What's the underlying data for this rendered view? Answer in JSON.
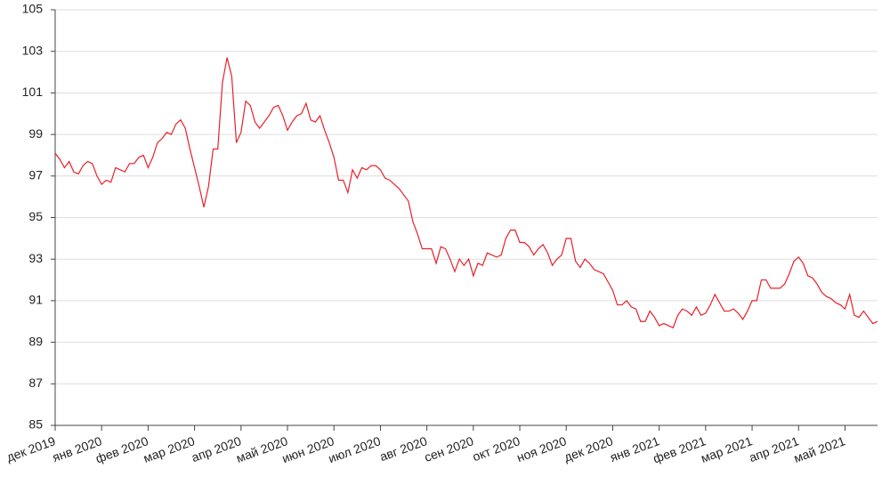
{
  "chart_data": {
    "type": "line",
    "x": [
      0,
      0.1,
      0.2,
      0.3,
      0.4,
      0.5,
      0.6,
      0.7,
      0.8,
      0.9,
      1,
      1.1,
      1.2,
      1.3,
      1.4,
      1.5,
      1.6,
      1.7,
      1.8,
      1.9,
      2,
      2.1,
      2.2,
      2.3,
      2.4,
      2.5,
      2.6,
      2.7,
      2.8,
      2.9,
      3,
      3.1,
      3.2,
      3.3,
      3.4,
      3.5,
      3.6,
      3.7,
      3.8,
      3.9,
      4,
      4.1,
      4.2,
      4.3,
      4.4,
      4.5,
      4.6,
      4.7,
      4.8,
      4.9,
      5,
      5.1,
      5.2,
      5.3,
      5.4,
      5.5,
      5.6,
      5.7,
      5.8,
      5.9,
      6,
      6.1,
      6.2,
      6.3,
      6.4,
      6.5,
      6.6,
      6.7,
      6.8,
      6.9,
      7,
      7.1,
      7.2,
      7.3,
      7.4,
      7.5,
      7.6,
      7.7,
      7.8,
      7.9,
      8,
      8.1,
      8.2,
      8.3,
      8.4,
      8.5,
      8.6,
      8.7,
      8.8,
      8.9,
      9,
      9.1,
      9.2,
      9.3,
      9.4,
      9.5,
      9.6,
      9.7,
      9.8,
      9.9,
      10,
      10.1,
      10.2,
      10.3,
      10.4,
      10.5,
      10.6,
      10.7,
      10.8,
      10.9,
      11,
      11.1,
      11.2,
      11.3,
      11.4,
      11.5,
      11.6,
      11.7,
      11.8,
      11.9,
      12,
      12.1,
      12.2,
      12.3,
      12.4,
      12.5,
      12.6,
      12.7,
      12.8,
      12.9,
      13,
      13.1,
      13.2,
      13.3,
      13.4,
      13.5,
      13.6,
      13.7,
      13.8,
      13.9,
      14,
      14.1,
      14.2,
      14.3,
      14.4,
      14.5,
      14.6,
      14.7,
      14.8,
      14.9,
      15,
      15.1,
      15.2,
      15.3,
      15.4,
      15.5,
      15.6,
      15.7,
      15.8,
      15.9,
      16,
      16.1,
      16.2,
      16.3,
      16.4,
      16.5,
      16.6,
      16.7,
      16.8,
      16.9,
      17,
      17.1,
      17.2,
      17.3,
      17.4,
      17.5,
      17.6,
      17.7
    ],
    "series": [
      {
        "color": "#e8202a",
        "values": [
          98.1,
          97.8,
          97.4,
          97.7,
          97.2,
          97.1,
          97.5,
          97.7,
          97.6,
          97.0,
          96.6,
          96.8,
          96.7,
          97.4,
          97.3,
          97.2,
          97.6,
          97.6,
          97.9,
          98.0,
          97.4,
          97.9,
          98.6,
          98.8,
          99.1,
          99.0,
          99.5,
          99.7,
          99.3,
          98.3,
          97.4,
          96.5,
          95.5,
          96.5,
          98.3,
          98.3,
          101.5,
          102.7,
          101.8,
          98.6,
          99.1,
          100.6,
          100.4,
          99.6,
          99.3,
          99.6,
          99.9,
          100.3,
          100.4,
          99.9,
          99.2,
          99.6,
          99.9,
          100.0,
          100.5,
          99.7,
          99.6,
          99.9,
          99.2,
          98.6,
          97.9,
          96.8,
          96.8,
          96.2,
          97.3,
          96.9,
          97.4,
          97.3,
          97.5,
          97.5,
          97.3,
          96.9,
          96.8,
          96.6,
          96.4,
          96.1,
          95.8,
          94.8,
          94.2,
          93.5,
          93.5,
          93.5,
          92.8,
          93.6,
          93.5,
          93.0,
          92.4,
          93.0,
          92.7,
          93.0,
          92.2,
          92.8,
          92.7,
          93.3,
          93.2,
          93.1,
          93.2,
          94.0,
          94.4,
          94.4,
          93.8,
          93.8,
          93.6,
          93.2,
          93.5,
          93.7,
          93.3,
          92.7,
          93.0,
          93.2,
          94.0,
          94.0,
          92.9,
          92.6,
          93.0,
          92.8,
          92.5,
          92.4,
          92.3,
          91.9,
          91.5,
          90.8,
          90.8,
          91.0,
          90.7,
          90.6,
          90.0,
          90.0,
          90.5,
          90.2,
          89.8,
          89.9,
          89.8,
          89.7,
          90.3,
          90.6,
          90.5,
          90.3,
          90.7,
          90.3,
          90.4,
          90.8,
          91.3,
          90.9,
          90.5,
          90.5,
          90.6,
          90.4,
          90.1,
          90.5,
          91.0,
          91.0,
          92.0,
          92.0,
          91.6,
          91.6,
          91.6,
          91.8,
          92.3,
          92.9,
          93.1,
          92.8,
          92.2,
          92.1,
          91.8,
          91.4,
          91.2,
          91.1,
          90.9,
          90.8,
          90.6,
          91.3,
          90.3,
          90.2,
          90.5,
          90.2,
          89.9,
          90.0
        ]
      }
    ],
    "xlim": [
      0,
      17.7
    ],
    "xticks": [
      {
        "value": 0,
        "label": "дек 2019"
      },
      {
        "value": 1,
        "label": "янв 2020"
      },
      {
        "value": 2,
        "label": "фев 2020"
      },
      {
        "value": 3,
        "label": "мар 2020"
      },
      {
        "value": 4,
        "label": "апр 2020"
      },
      {
        "value": 5,
        "label": "май 2020"
      },
      {
        "value": 6,
        "label": "июн 2020"
      },
      {
        "value": 7,
        "label": "июл 2020"
      },
      {
        "value": 8,
        "label": "авг 2020"
      },
      {
        "value": 9,
        "label": "сен 2020"
      },
      {
        "value": 10,
        "label": "окт 2020"
      },
      {
        "value": 11,
        "label": "ноя 2020"
      },
      {
        "value": 12,
        "label": "дек 2020"
      },
      {
        "value": 13,
        "label": "янв 2021"
      },
      {
        "value": 14,
        "label": "фев 2021"
      },
      {
        "value": 15,
        "label": "мар 2021"
      },
      {
        "value": 16,
        "label": "апр 2021"
      },
      {
        "value": 17,
        "label": "май 2021"
      }
    ],
    "ylim": [
      85,
      105
    ],
    "yticks": [
      85,
      87,
      89,
      91,
      93,
      95,
      97,
      99,
      101,
      103,
      105
    ],
    "grid": true
  }
}
